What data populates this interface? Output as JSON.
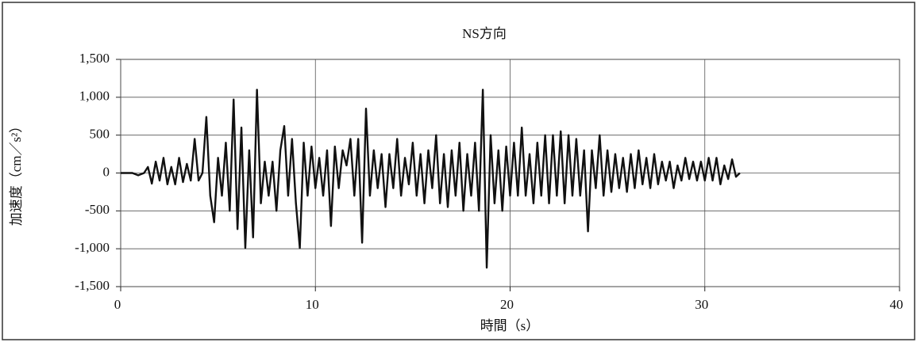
{
  "chart_data": {
    "type": "line",
    "title": "NS方向",
    "x_label": "時間（s）",
    "y_label": "加速度（cm／s²）",
    "color": "#111111",
    "grid": true,
    "xlim": [
      0,
      40
    ],
    "xticks": [
      0,
      10,
      20,
      30,
      40
    ],
    "ylim": [
      -1500,
      1500
    ],
    "yticks": [
      {
        "value": 1500,
        "label": "1,500"
      },
      {
        "value": 1000,
        "label": "1,000"
      },
      500,
      0,
      -500,
      {
        "value": -1000,
        "label": "-1,000"
      },
      {
        "value": -1500,
        "label": "-1,500"
      }
    ],
    "x": [
      0,
      0.6,
      0.9,
      1.2,
      1.4,
      1.6,
      1.8,
      2.0,
      2.2,
      2.4,
      2.6,
      2.8,
      3.0,
      3.2,
      3.4,
      3.6,
      3.8,
      4.0,
      4.2,
      4.4,
      4.6,
      4.8,
      5.0,
      5.2,
      5.4,
      5.6,
      5.8,
      6.0,
      6.2,
      6.4,
      6.6,
      6.8,
      7.0,
      7.2,
      7.4,
      7.6,
      7.8,
      8.0,
      8.2,
      8.4,
      8.6,
      8.8,
      9.0,
      9.2,
      9.4,
      9.6,
      9.8,
      10.0,
      10.2,
      10.4,
      10.6,
      10.8,
      11.0,
      11.2,
      11.4,
      11.6,
      11.8,
      12.0,
      12.2,
      12.4,
      12.6,
      12.8,
      13.0,
      13.2,
      13.4,
      13.6,
      13.8,
      14.0,
      14.2,
      14.4,
      14.6,
      14.8,
      15.0,
      15.2,
      15.4,
      15.6,
      15.8,
      16.0,
      16.2,
      16.4,
      16.6,
      16.8,
      17.0,
      17.2,
      17.4,
      17.6,
      17.8,
      18.0,
      18.2,
      18.4,
      18.6,
      18.8,
      19.0,
      19.2,
      19.4,
      19.6,
      19.8,
      20.0,
      20.2,
      20.4,
      20.6,
      20.8,
      21.0,
      21.2,
      21.4,
      21.6,
      21.8,
      22.0,
      22.2,
      22.4,
      22.6,
      22.8,
      23.0,
      23.2,
      23.4,
      23.6,
      23.8,
      24.0,
      24.2,
      24.4,
      24.6,
      24.8,
      25.0,
      25.2,
      25.4,
      25.6,
      25.8,
      26.0,
      26.2,
      26.4,
      26.6,
      26.8,
      27.0,
      27.2,
      27.4,
      27.6,
      27.8,
      28.0,
      28.2,
      28.4,
      28.6,
      28.8,
      29.0,
      29.2,
      29.4,
      29.6,
      29.8,
      30.0,
      30.2,
      30.4,
      30.6,
      30.8,
      31.0,
      31.2,
      31.4,
      31.6,
      31.8
    ],
    "values": [
      0,
      0,
      -30,
      0,
      80,
      -140,
      150,
      -100,
      200,
      -150,
      80,
      -150,
      200,
      -120,
      120,
      -100,
      450,
      -100,
      0,
      740,
      -300,
      -650,
      200,
      -300,
      400,
      -500,
      970,
      -740,
      600,
      -990,
      300,
      -850,
      1100,
      -400,
      150,
      -300,
      150,
      -500,
      300,
      620,
      -300,
      450,
      -400,
      -990,
      400,
      -300,
      350,
      -200,
      200,
      -300,
      300,
      -700,
      350,
      -200,
      300,
      100,
      450,
      -300,
      450,
      -920,
      850,
      -300,
      300,
      -200,
      250,
      -450,
      250,
      -200,
      450,
      -300,
      200,
      -150,
      400,
      -300,
      250,
      -400,
      300,
      -200,
      500,
      -400,
      250,
      -450,
      300,
      -300,
      400,
      -500,
      250,
      -300,
      400,
      -500,
      1100,
      -1250,
      500,
      -400,
      300,
      -500,
      350,
      -300,
      400,
      -300,
      600,
      -300,
      250,
      -400,
      400,
      -300,
      500,
      -400,
      500,
      -300,
      550,
      -400,
      500,
      -300,
      450,
      -300,
      300,
      -770,
      300,
      -200,
      500,
      -300,
      300,
      -250,
      250,
      -200,
      200,
      -250,
      250,
      -200,
      300,
      -150,
      200,
      -200,
      250,
      -150,
      150,
      -100,
      150,
      -200,
      100,
      -100,
      200,
      -80,
      150,
      -100,
      150,
      -100,
      200,
      -100,
      200,
      -150,
      100,
      -80,
      180,
      -50,
      0
    ]
  }
}
